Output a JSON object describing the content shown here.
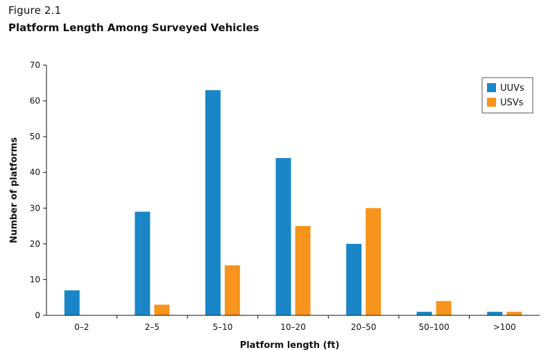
{
  "figure": {
    "label": "Figure 2.1",
    "title": "Platform Length Among Surveyed Vehicles"
  },
  "chart_data": {
    "type": "bar",
    "title": "Platform Length Among Surveyed Vehicles",
    "xlabel": "Platform length (ft)",
    "ylabel": "Number of platforms",
    "ylim": [
      0,
      70
    ],
    "yticks": [
      0,
      10,
      20,
      30,
      40,
      50,
      60,
      70
    ],
    "categories": [
      "0–2",
      "2–5",
      "5–10",
      "10–20",
      "20–50",
      "50–100",
      ">100"
    ],
    "series": [
      {
        "name": "UUVs",
        "color": "#1a86c8",
        "values": [
          7,
          29,
          63,
          44,
          20,
          1,
          1
        ]
      },
      {
        "name": "USVs",
        "color": "#f7941d",
        "values": [
          0,
          3,
          14,
          25,
          30,
          4,
          1
        ]
      }
    ],
    "legend": "top-right",
    "grid": false
  }
}
